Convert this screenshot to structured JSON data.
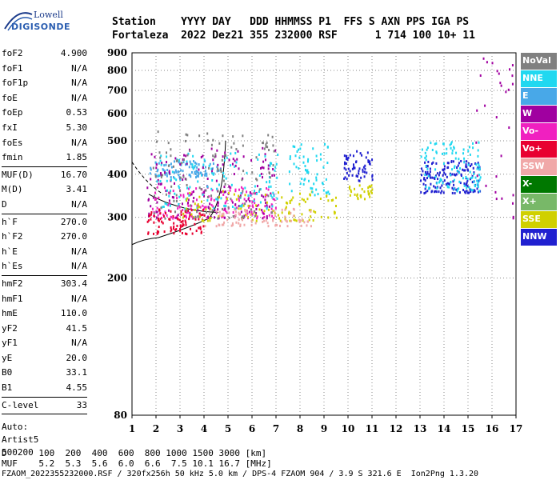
{
  "logo": {
    "line1": "Lowell",
    "line2": "DIGISONDE"
  },
  "header": {
    "row1": "Station    YYYY DAY   DDD HHMMSS P1  FFS S AXN PPS IGA PS",
    "row2": "Fortaleza  2022 Dez21 355 232000 RSF      1 714 100 10+ 11"
  },
  "params": [
    {
      "name": "foF2",
      "value": "4.900"
    },
    {
      "name": "foF1",
      "value": "N/A"
    },
    {
      "name": "foF1p",
      "value": "N/A"
    },
    {
      "name": "foE",
      "value": "N/A"
    },
    {
      "name": "foEp",
      "value": "0.53"
    },
    {
      "name": "fxI",
      "value": "5.30"
    },
    {
      "name": "foEs",
      "value": "N/A"
    },
    {
      "name": "fmin",
      "value": "1.85"
    }
  ],
  "params2": [
    {
      "name": "MUF(D)",
      "value": "16.70"
    },
    {
      "name": "M(D)",
      "value": "3.41"
    },
    {
      "name": "D",
      "value": "N/A"
    }
  ],
  "params3": [
    {
      "name": "h`F",
      "value": "270.0"
    },
    {
      "name": "h`F2",
      "value": "270.0"
    },
    {
      "name": "h`E",
      "value": "N/A"
    },
    {
      "name": "h`Es",
      "value": "N/A"
    }
  ],
  "params4": [
    {
      "name": "hmF2",
      "value": "303.4"
    },
    {
      "name": "hmF1",
      "value": "N/A"
    },
    {
      "name": "hmE",
      "value": "110.0"
    },
    {
      "name": "yF2",
      "value": "41.5"
    },
    {
      "name": "yF1",
      "value": "N/A"
    },
    {
      "name": "yE",
      "value": "20.0"
    },
    {
      "name": "B0",
      "value": "33.1"
    },
    {
      "name": "B1",
      "value": "4.55"
    }
  ],
  "params5": [
    {
      "name": "C-level",
      "value": "33"
    }
  ],
  "auto": {
    "line1": "Auto:",
    "line2": "Artist5",
    "line3": "500200"
  },
  "legend": [
    {
      "label": "NoVal",
      "color": "#808080"
    },
    {
      "label": "NNE",
      "color": "#20d8f0"
    },
    {
      "label": "E",
      "color": "#48a8e8"
    },
    {
      "label": "W",
      "color": "#a000a0"
    },
    {
      "label": "Vo-",
      "color": "#f020c0"
    },
    {
      "label": "Vo+",
      "color": "#e80030"
    },
    {
      "label": "SSW",
      "color": "#f0a8a8"
    },
    {
      "label": "X-",
      "color": "#007800"
    },
    {
      "label": "X+",
      "color": "#78b868"
    },
    {
      "label": "SSE",
      "color": "#d0d000"
    },
    {
      "label": "NNW",
      "color": "#2020d0"
    }
  ],
  "footer": {
    "d_row": "D      100  200  400  600  800 1000 1500 3000 [km]",
    "muf_row": "MUF    5.2  5.3  5.6  6.0  6.6  7.5 10.1 16.7 [MHz]",
    "info": "FZAOM_2022355232000.RSF / 320fx256h 50 kHz 5.0 km / DPS-4 FZAOM 904 / 3.9 S 321.6 E  Ion2Png 1.3.20"
  },
  "chart_data": {
    "type": "scatter",
    "x_ticks": [
      "1",
      "2",
      "3",
      "4",
      "5",
      "6",
      "7",
      "8",
      "9",
      "10",
      "11",
      "12",
      "13",
      "14",
      "15",
      "16",
      "17"
    ],
    "y_ticks": [
      "80",
      "200",
      "300",
      "400",
      "500",
      "600",
      "700",
      "800",
      "900"
    ],
    "xlim": [
      1,
      17
    ],
    "y_scale": "log",
    "ylim": [
      80,
      900
    ],
    "grid": true,
    "xlabel": "",
    "ylabel": "",
    "clusters": [
      {
        "series": "E",
        "fmin": 1.7,
        "fmax": 4.6,
        "hmin": 395,
        "hmax": 440,
        "n": 90
      },
      {
        "series": "Vo-",
        "fmin": 1.8,
        "fmax": 7.0,
        "hmin": 300,
        "hmax": 370,
        "n": 160
      },
      {
        "series": "W",
        "fmin": 1.6,
        "fmax": 7.0,
        "hmin": 300,
        "hmax": 480,
        "n": 160
      },
      {
        "series": "Vo+",
        "fmin": 1.6,
        "fmax": 4.0,
        "hmin": 270,
        "hmax": 320,
        "n": 90
      },
      {
        "series": "NNE",
        "fmin": 2.0,
        "fmax": 7.2,
        "hmin": 320,
        "hmax": 470,
        "n": 120
      },
      {
        "series": "SSE",
        "fmin": 3.0,
        "fmax": 9.5,
        "hmin": 295,
        "hmax": 360,
        "n": 110
      },
      {
        "series": "SSW",
        "fmin": 4.0,
        "fmax": 8.5,
        "hmin": 285,
        "hmax": 320,
        "n": 80
      },
      {
        "series": "NoVal",
        "fmin": 1.8,
        "fmax": 7.0,
        "hmin": 300,
        "hmax": 540,
        "n": 120
      },
      {
        "series": "NNW",
        "fmin": 9.8,
        "fmax": 11.0,
        "hmin": 385,
        "hmax": 470,
        "n": 60
      },
      {
        "series": "NNW",
        "fmin": 13.0,
        "fmax": 15.5,
        "hmin": 355,
        "hmax": 440,
        "n": 160
      },
      {
        "series": "NNE",
        "fmin": 13.0,
        "fmax": 15.5,
        "hmin": 360,
        "hmax": 500,
        "n": 110
      },
      {
        "series": "SSE",
        "fmin": 10.0,
        "fmax": 11.0,
        "hmin": 340,
        "hmax": 375,
        "n": 30
      },
      {
        "series": "NNE",
        "fmin": 7.5,
        "fmax": 9.2,
        "hmin": 350,
        "hmax": 500,
        "n": 60
      },
      {
        "series": "W",
        "fmin": 15.3,
        "fmax": 16.9,
        "hmin": 300,
        "hmax": 880,
        "n": 30
      }
    ]
  }
}
